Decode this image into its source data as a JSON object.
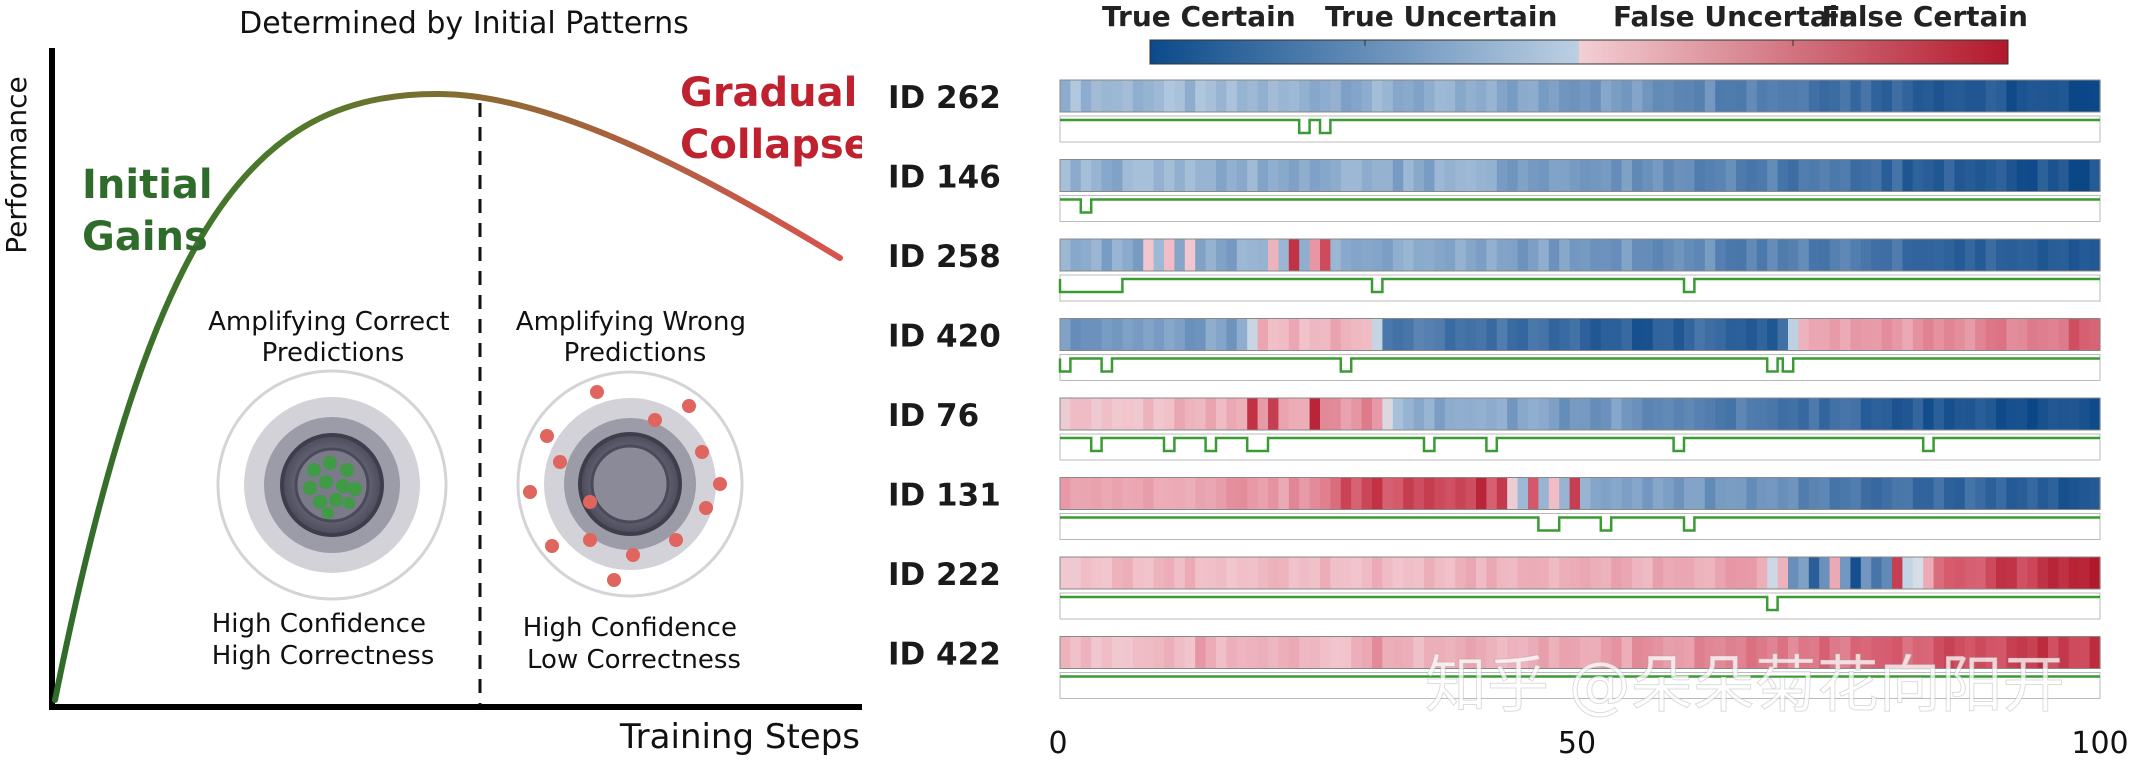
{
  "left_panel": {
    "title": "Determined by Initial Patterns",
    "y_axis_label": "Performance",
    "x_axis_label": "Training Steps",
    "phase_initial": [
      "Initial",
      "Gains"
    ],
    "phase_collapse": [
      "Gradual",
      "Collapse"
    ],
    "correct_caption": [
      "Amplifying Correct",
      "Predictions"
    ],
    "wrong_caption": [
      "Amplifying Wrong",
      "Predictions"
    ],
    "correct_footer": [
      "High Confidence",
      "High Correctness"
    ],
    "wrong_footer": [
      "High Confidence",
      "Low Correctness"
    ],
    "colors": {
      "gain": "#2f6b2a",
      "collapse": "#c0212e",
      "dot_green": "#3f9b45",
      "dot_red": "#e0655e"
    }
  },
  "right_panel": {
    "legend": {
      "labels": [
        "True Certain",
        "True Uncertain",
        "False Uncertain",
        "False Certain"
      ]
    },
    "x_ticks": [
      "0",
      "50",
      "100"
    ],
    "watermark": "知乎 @朵朵菊花向阳开",
    "chart_data": {
      "type": "heatmap",
      "title": "",
      "x_range": [
        0,
        100
      ],
      "color_scale": [
        "True Certain",
        "True Uncertain",
        "False Uncertain",
        "False Certain"
      ],
      "value_meaning": "-2 = True Certain, -1 = True Uncertain, 1 = False Uncertain, 2 = False Certain",
      "rows": [
        {
          "id": "ID 262",
          "profile": [
            [
              0,
              -0.7
            ],
            [
              25,
              -0.8
            ],
            [
              50,
              -1.0
            ],
            [
              70,
              -1.3
            ],
            [
              85,
              -1.7
            ],
            [
              100,
              -2.0
            ]
          ],
          "hot_spots": [],
          "dips": [
            [
              23,
              24
            ],
            [
              25,
              26
            ]
          ]
        },
        {
          "id": "ID 146",
          "profile": [
            [
              0,
              -0.8
            ],
            [
              40,
              -0.9
            ],
            [
              70,
              -1.4
            ],
            [
              85,
              -1.7
            ],
            [
              100,
              -1.9
            ]
          ],
          "hot_spots": [],
          "dips": [
            [
              2,
              3
            ]
          ]
        },
        {
          "id": "ID 258",
          "profile": [
            [
              0,
              -0.9
            ],
            [
              40,
              -0.9
            ],
            [
              70,
              -1.3
            ],
            [
              85,
              -1.6
            ],
            [
              100,
              -1.9
            ]
          ],
          "hot_spots": [
            [
              8,
              9,
              0.5
            ],
            [
              10,
              11,
              0.6
            ],
            [
              12,
              13,
              0.5
            ],
            [
              20,
              21,
              0.7
            ],
            [
              22,
              23,
              1.8
            ],
            [
              24,
              25,
              1.0
            ],
            [
              25.5,
              26.5,
              1.6
            ]
          ],
          "dips": [
            [
              0,
              6
            ],
            [
              30,
              31
            ],
            [
              60,
              61
            ]
          ]
        },
        {
          "id": "ID 420",
          "profile": [
            [
              0,
              -1.1
            ],
            [
              18,
              -1.0
            ],
            [
              19,
              0.7
            ],
            [
              30,
              0.7
            ],
            [
              31,
              -1.4
            ],
            [
              45,
              -1.5
            ],
            [
              58,
              -1.8
            ],
            [
              62,
              -1.4
            ],
            [
              66,
              -1.8
            ],
            [
              70,
              -1.6
            ],
            [
              71,
              0.8
            ],
            [
              90,
              1.1
            ],
            [
              100,
              1.5
            ]
          ],
          "hot_spots": [],
          "dips": [
            [
              0,
              1
            ],
            [
              4,
              5
            ],
            [
              27,
              28
            ],
            [
              68,
              69
            ],
            [
              69.5,
              70.5
            ]
          ]
        },
        {
          "id": "ID 76",
          "profile": [
            [
              0,
              0.5
            ],
            [
              20,
              0.8
            ],
            [
              31,
              1.1
            ],
            [
              32,
              -0.8
            ],
            [
              60,
              -1.2
            ],
            [
              80,
              -1.7
            ],
            [
              100,
              -2.0
            ]
          ],
          "hot_spots": [
            [
              18,
              19,
              1.8
            ],
            [
              20,
              21,
              1.7
            ],
            [
              24,
              25,
              1.9
            ]
          ],
          "dips": [
            [
              3,
              4
            ],
            [
              10,
              11
            ],
            [
              14,
              15
            ],
            [
              18,
              20
            ],
            [
              35,
              36
            ],
            [
              41,
              42
            ],
            [
              59,
              60
            ],
            [
              83,
              84
            ]
          ]
        },
        {
          "id": "ID 131",
          "profile": [
            [
              0,
              0.8
            ],
            [
              25,
              1.0
            ],
            [
              26,
              1.5
            ],
            [
              43,
              1.6
            ],
            [
              44,
              -0.8
            ],
            [
              60,
              -1.0
            ],
            [
              80,
              -1.5
            ],
            [
              100,
              -1.8
            ]
          ],
          "hot_spots": [
            [
              30,
              31,
              1.8
            ],
            [
              40,
              41,
              1.9
            ],
            [
              45,
              46,
              1.5
            ],
            [
              47,
              48,
              0.6
            ],
            [
              49,
              50,
              1.7
            ]
          ],
          "dips": [
            [
              46,
              48
            ],
            [
              52,
              53
            ],
            [
              60,
              61
            ]
          ]
        },
        {
          "id": "ID 222",
          "profile": [
            [
              0,
              0.6
            ],
            [
              50,
              0.7
            ],
            [
              68,
              0.9
            ],
            [
              69,
              -1.0
            ],
            [
              80,
              -1.3
            ],
            [
              85,
              1.5
            ],
            [
              100,
              1.9
            ]
          ],
          "hot_spots": [
            [
              69,
              70,
              0.7
            ],
            [
              72,
              73,
              -1.7
            ],
            [
              74,
              75,
              0.8
            ],
            [
              76,
              77,
              -1.9
            ],
            [
              80,
              81,
              1.7
            ]
          ],
          "dips": [
            [
              68,
              69
            ]
          ]
        },
        {
          "id": "ID 422",
          "profile": [
            [
              0,
              0.6
            ],
            [
              40,
              0.7
            ],
            [
              60,
              1.0
            ],
            [
              80,
              1.4
            ],
            [
              100,
              1.8
            ]
          ],
          "hot_spots": [
            [
              13,
              14,
              1.0
            ],
            [
              30,
              31,
              1.1
            ]
          ],
          "dips": []
        }
      ]
    }
  }
}
